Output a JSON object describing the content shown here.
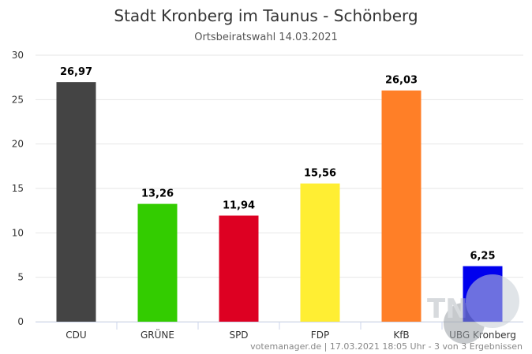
{
  "chart_data": {
    "type": "bar",
    "title": "Stadt Kronberg im Taunus - Schönberg",
    "subtitle": "Ortsbeiratswahl 14.03.2021",
    "categories": [
      "CDU",
      "GRÜNE",
      "SPD",
      "FDP",
      "KfB",
      "UBG Kronberg"
    ],
    "values": [
      26.97,
      13.26,
      11.94,
      15.56,
      26.03,
      6.25
    ],
    "value_labels": [
      "26,97",
      "13,26",
      "11,94",
      "15,56",
      "26,03",
      "6,25"
    ],
    "colors": [
      "#444444",
      "#33cc00",
      "#dd0022",
      "#ffee33",
      "#ff7f27",
      "#0000ee"
    ],
    "yticks": [
      0,
      5,
      10,
      15,
      20,
      25,
      30
    ],
    "ylim": [
      0,
      30
    ],
    "xlabel": "",
    "ylabel": "",
    "grid": true,
    "legend": "none"
  },
  "credits": "votemanager.de | 17.03.2021 18:05 Uhr - 3 von 3 Ergebnissen",
  "watermark": "TN"
}
